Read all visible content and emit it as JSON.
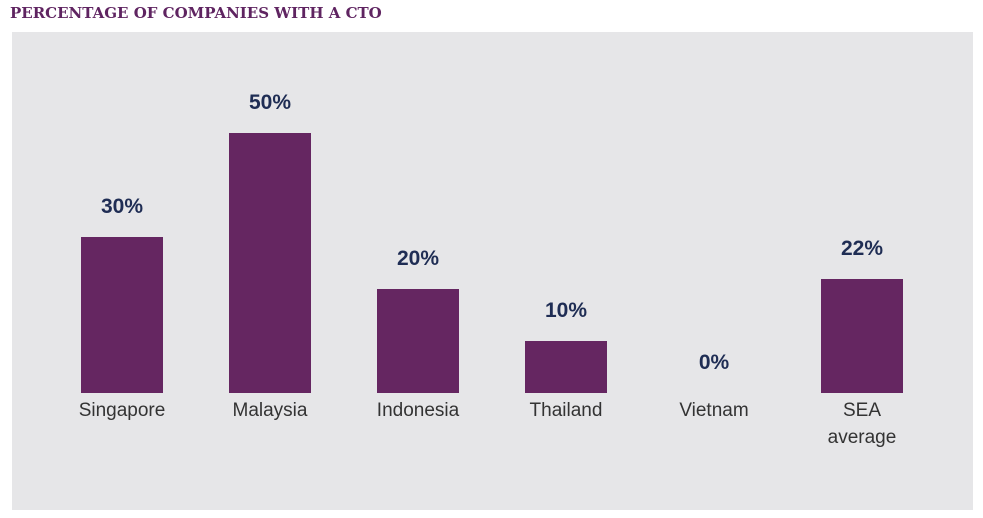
{
  "chart_data": {
    "type": "bar",
    "title": "PERCENTAGE OF COMPANIES WITH A CTO",
    "categories": [
      "Singapore",
      "Malaysia",
      "Indonesia",
      "Thailand",
      "Vietnam",
      "SEA average"
    ],
    "values": [
      30,
      50,
      20,
      10,
      0,
      22
    ],
    "value_labels": [
      "30%",
      "50%",
      "20%",
      "10%",
      "0%",
      "22%"
    ],
    "color": "#652661"
  }
}
